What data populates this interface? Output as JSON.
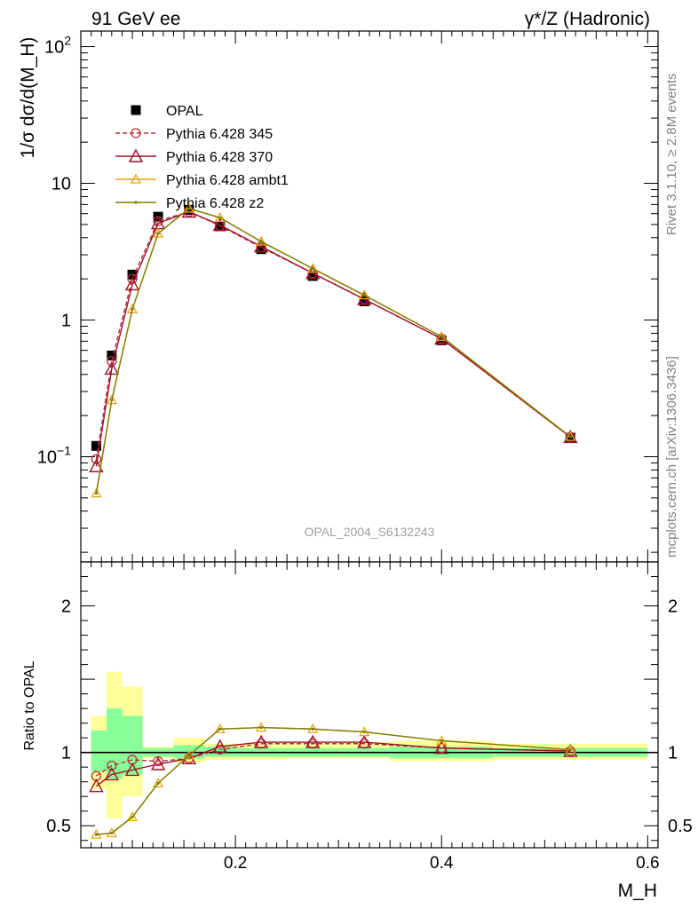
{
  "header": {
    "left_label": "91 GeV ee",
    "right_label_prefix": "γ*/Z (Hadronic)"
  },
  "side_text": {
    "rivet": "Rivet 3.1.10, ≥ 2.8M events",
    "mcplots": "mcplots.cern.ch [arXiv:1306.3436]"
  },
  "watermark": "OPAL_2004_S6132243",
  "chart_data": [
    {
      "type": "line",
      "panel": "main",
      "ylabel": "1/σ dσ/d(M_H)",
      "y_scale": "log",
      "ylim": [
        0.017,
        130
      ],
      "xlim": [
        0.05,
        0.61
      ],
      "y_tick_labels": [
        "10^-1",
        "1",
        "10",
        "10^2"
      ],
      "x": [
        0.065,
        0.08,
        0.1,
        0.125,
        0.155,
        0.185,
        0.225,
        0.275,
        0.325,
        0.4,
        0.525
      ],
      "series": [
        {
          "name": "OPAL",
          "color": "#000000",
          "marker": "square",
          "values": [
            0.12,
            0.55,
            2.15,
            5.7,
            6.4,
            4.85,
            3.3,
            2.1,
            1.37,
            0.71,
            0.138
          ]
        },
        {
          "name": "Pythia 6.428 345",
          "color": "#b5303a",
          "marker": "circle-open",
          "dash": true,
          "values": [
            0.096,
            0.5,
            2.0,
            5.3,
            6.2,
            4.9,
            3.4,
            2.2,
            1.42,
            0.73,
            0.139
          ]
        },
        {
          "name": "Pythia 6.428 370",
          "color": "#a01028",
          "marker": "triangle-open",
          "values": [
            0.085,
            0.44,
            1.82,
            5.1,
            6.2,
            4.95,
            3.45,
            2.2,
            1.42,
            0.73,
            0.139
          ]
        },
        {
          "name": "Pythia 6.428 ambt1",
          "color": "#e8a317",
          "marker": "triangle-open-small",
          "values": [
            0.054,
            0.26,
            1.2,
            4.3,
            6.55,
            5.6,
            3.75,
            2.38,
            1.52,
            0.755,
            0.14
          ]
        },
        {
          "name": "Pythia 6.428 z2",
          "color": "#7d7d00",
          "marker": "dot",
          "values": [
            0.054,
            0.26,
            1.2,
            4.3,
            6.55,
            5.6,
            3.75,
            2.38,
            1.52,
            0.755,
            0.14
          ]
        }
      ]
    },
    {
      "type": "line",
      "panel": "ratio",
      "ylabel": "Ratio to OPAL",
      "xlabel": "M_H",
      "ylim": [
        0.35,
        2.3
      ],
      "xlim": [
        0.05,
        0.61
      ],
      "y_ticks": [
        0.5,
        1,
        2
      ],
      "y_tick_labels": [
        "0.5",
        "1",
        "2"
      ],
      "x_ticks": [
        0.2,
        0.4,
        0.6
      ],
      "x_tick_labels": [
        "0.2",
        "0.4",
        "0.6"
      ],
      "bins": [
        {
          "lo": 0.06,
          "hi": 0.075,
          "stat": [
            0.87,
            1.15
          ],
          "total": [
            0.75,
            1.25
          ]
        },
        {
          "lo": 0.075,
          "hi": 0.09,
          "stat": [
            0.82,
            1.3
          ],
          "total": [
            0.55,
            1.55
          ]
        },
        {
          "lo": 0.09,
          "hi": 0.11,
          "stat": [
            0.85,
            1.25
          ],
          "total": [
            0.7,
            1.45
          ]
        },
        {
          "lo": 0.11,
          "hi": 0.14,
          "stat": [
            0.97,
            1.03
          ],
          "total": [
            0.96,
            1.04
          ]
        },
        {
          "lo": 0.14,
          "hi": 0.17,
          "stat": [
            0.96,
            1.05
          ],
          "total": [
            0.93,
            1.1
          ]
        },
        {
          "lo": 0.17,
          "hi": 0.2,
          "stat": [
            0.97,
            1.04
          ],
          "total": [
            0.95,
            1.06
          ]
        },
        {
          "lo": 0.2,
          "hi": 0.25,
          "stat": [
            0.97,
            1.03
          ],
          "total": [
            0.95,
            1.06
          ]
        },
        {
          "lo": 0.25,
          "hi": 0.3,
          "stat": [
            0.97,
            1.03
          ],
          "total": [
            0.96,
            1.06
          ]
        },
        {
          "lo": 0.3,
          "hi": 0.35,
          "stat": [
            0.97,
            1.03
          ],
          "total": [
            0.96,
            1.07
          ]
        },
        {
          "lo": 0.35,
          "hi": 0.45,
          "stat": [
            0.96,
            1.04
          ],
          "total": [
            0.94,
            1.08
          ]
        },
        {
          "lo": 0.45,
          "hi": 0.6,
          "stat": [
            0.97,
            1.03
          ],
          "total": [
            0.95,
            1.06
          ]
        }
      ],
      "series": [
        {
          "name": "Pythia 6.428 345",
          "color": "#b5303a",
          "marker": "circle-open",
          "dash": true,
          "values": [
            0.84,
            0.91,
            0.95,
            0.94,
            0.96,
            1.02,
            1.06,
            1.06,
            1.06,
            1.03,
            1.01
          ]
        },
        {
          "name": "Pythia 6.428 370",
          "color": "#a01028",
          "marker": "triangle-open",
          "values": [
            0.77,
            0.85,
            0.88,
            0.92,
            0.96,
            1.04,
            1.07,
            1.07,
            1.07,
            1.03,
            1.01
          ]
        },
        {
          "name": "Pythia 6.428 ambt1",
          "color": "#e8a317",
          "marker": "triangle-open-small",
          "values": [
            0.44,
            0.45,
            0.56,
            0.79,
            0.98,
            1.16,
            1.17,
            1.16,
            1.14,
            1.08,
            1.02
          ]
        },
        {
          "name": "Pythia 6.428 z2",
          "color": "#7d7d00",
          "marker": "dot",
          "values": [
            0.44,
            0.45,
            0.56,
            0.79,
            0.98,
            1.16,
            1.17,
            1.16,
            1.14,
            1.08,
            1.02
          ]
        }
      ]
    }
  ]
}
